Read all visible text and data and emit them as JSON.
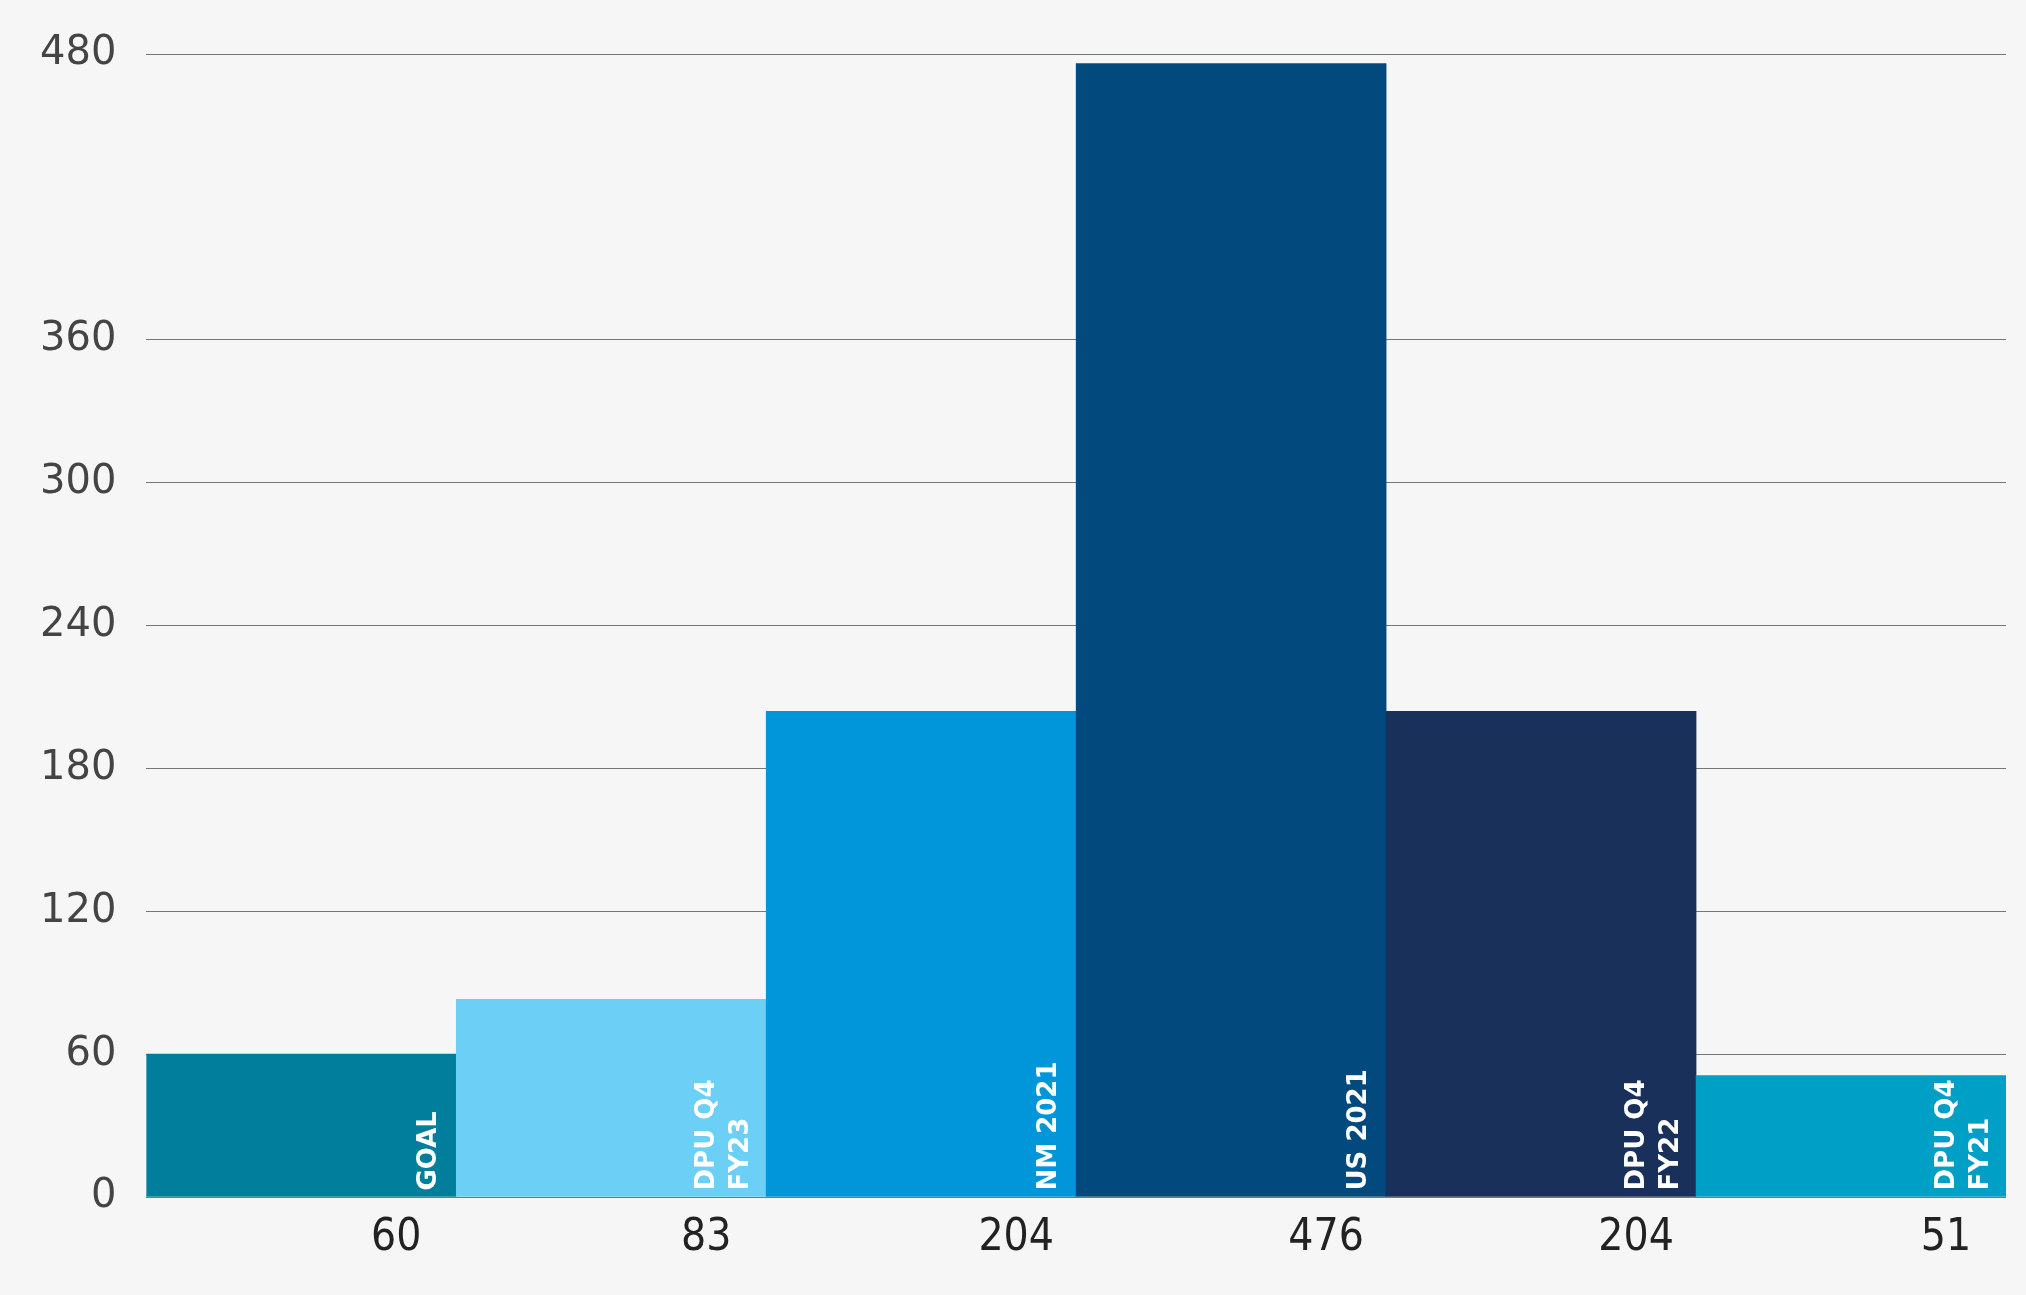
{
  "chart_data": {
    "type": "bar",
    "categories": [
      "GOAL",
      "DPU Q4 FY23",
      "NM 2021",
      "US 2021",
      "DPU Q4 FY22",
      "DPU Q4 FY21"
    ],
    "values": [
      60,
      83,
      204,
      476,
      204,
      51
    ],
    "colors": [
      "#007e9c",
      "#6ccff5",
      "#0096d9",
      "#02497e",
      "#19305a",
      "#009fc6"
    ],
    "ylim": [
      0,
      480
    ],
    "yticks": [
      0,
      60,
      120,
      180,
      240,
      300,
      360,
      480
    ],
    "grid": "y",
    "legend": false,
    "data_labels": true,
    "tick_labels": "y"
  }
}
